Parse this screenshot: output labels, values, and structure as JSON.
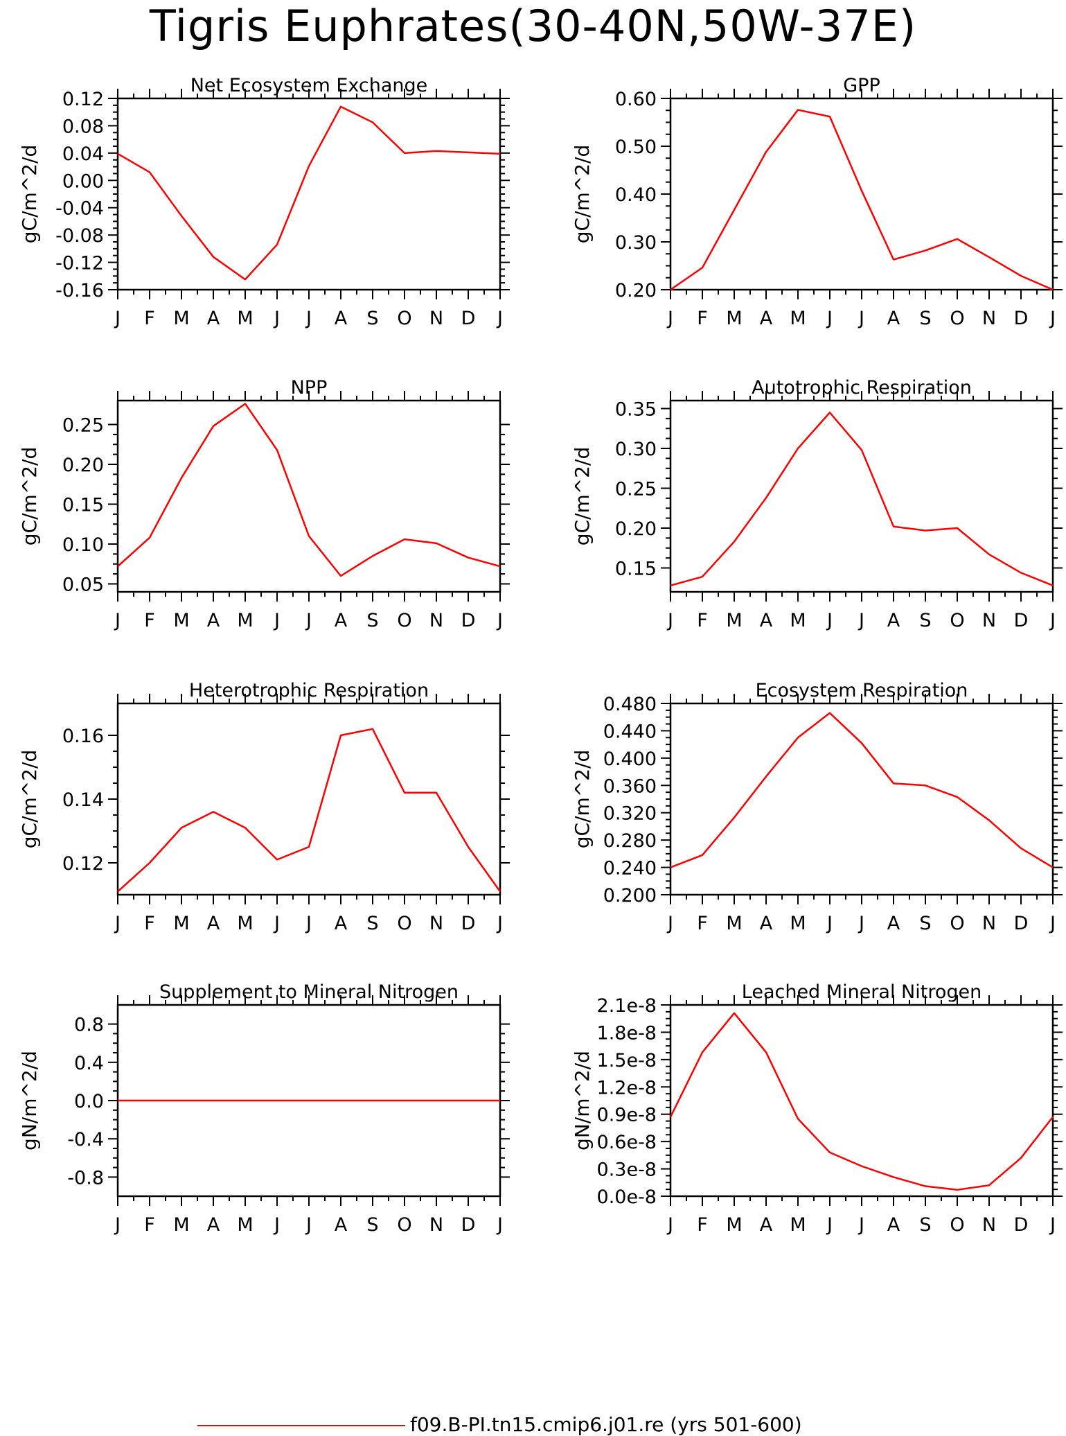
{
  "title": "Tigris Euphrates(30-40N,50W-37E)",
  "legend": {
    "label": "f09.B-PI.tn15.cmip6.j01.re (yrs 501-600)",
    "color": "#ff0000"
  },
  "chart_data": [
    {
      "type": "line",
      "title": "Net Ecosystem Exchange",
      "ylabel": "gC/m^2/d",
      "categories": [
        "J",
        "F",
        "M",
        "A",
        "M",
        "J",
        "J",
        "A",
        "S",
        "O",
        "N",
        "D",
        "J"
      ],
      "ylim": [
        -0.16,
        0.12
      ],
      "yticks": [
        0.12,
        0.08,
        0.04,
        0.0,
        -0.04,
        -0.08,
        -0.12,
        -0.16
      ],
      "ytick_labels": [
        "0.12",
        "0.08",
        "0.04",
        "0.00",
        "-0.04",
        "-0.08",
        "-0.12",
        "-0.16"
      ],
      "series": [
        {
          "values": [
            0.039,
            0.012,
            -0.052,
            -0.112,
            -0.145,
            -0.094,
            0.021,
            0.108,
            0.085,
            0.04,
            0.043,
            0.041,
            0.039
          ]
        }
      ]
    },
    {
      "type": "line",
      "title": "GPP",
      "ylabel": "gC/m^2/d",
      "categories": [
        "J",
        "F",
        "M",
        "A",
        "M",
        "J",
        "J",
        "A",
        "S",
        "O",
        "N",
        "D",
        "J"
      ],
      "ylim": [
        0.2,
        0.6
      ],
      "yticks": [
        0.6,
        0.5,
        0.4,
        0.3,
        0.2
      ],
      "ytick_labels": [
        "0.60",
        "0.50",
        "0.40",
        "0.30",
        "0.20"
      ],
      "series": [
        {
          "values": [
            0.2,
            0.246,
            0.367,
            0.488,
            0.576,
            0.562,
            0.407,
            0.263,
            0.282,
            0.306,
            0.268,
            0.229,
            0.2
          ]
        }
      ]
    },
    {
      "type": "line",
      "title": "NPP",
      "ylabel": "gC/m^2/d",
      "categories": [
        "J",
        "F",
        "M",
        "A",
        "M",
        "J",
        "J",
        "A",
        "S",
        "O",
        "N",
        "D",
        "J"
      ],
      "ylim": [
        0.04,
        0.28
      ],
      "yticks": [
        0.25,
        0.2,
        0.15,
        0.1,
        0.05
      ],
      "ytick_labels": [
        "0.25",
        "0.20",
        "0.15",
        "0.10",
        "0.05"
      ],
      "series": [
        {
          "values": [
            0.072,
            0.108,
            0.183,
            0.248,
            0.276,
            0.218,
            0.11,
            0.06,
            0.085,
            0.106,
            0.101,
            0.083,
            0.072
          ]
        }
      ]
    },
    {
      "type": "line",
      "title": "Autotrophic Respiration",
      "ylabel": "gC/m^2/d",
      "categories": [
        "J",
        "F",
        "M",
        "A",
        "M",
        "J",
        "J",
        "A",
        "S",
        "O",
        "N",
        "D",
        "J"
      ],
      "ylim": [
        0.12,
        0.36
      ],
      "yticks": [
        0.35,
        0.3,
        0.25,
        0.2,
        0.15
      ],
      "ytick_labels": [
        "0.35",
        "0.30",
        "0.25",
        "0.20",
        "0.15"
      ],
      "series": [
        {
          "values": [
            0.128,
            0.139,
            0.183,
            0.238,
            0.3,
            0.345,
            0.298,
            0.202,
            0.197,
            0.2,
            0.167,
            0.144,
            0.128
          ]
        }
      ]
    },
    {
      "type": "line",
      "title": "Heterotrophic Respiration",
      "ylabel": "gC/m^2/d",
      "categories": [
        "J",
        "F",
        "M",
        "A",
        "M",
        "J",
        "J",
        "A",
        "S",
        "O",
        "N",
        "D",
        "J"
      ],
      "ylim": [
        0.11,
        0.17
      ],
      "yticks": [
        0.16,
        0.14,
        0.12
      ],
      "ytick_labels": [
        "0.16",
        "0.14",
        "0.12"
      ],
      "series": [
        {
          "values": [
            0.111,
            0.12,
            0.131,
            0.136,
            0.131,
            0.121,
            0.125,
            0.16,
            0.162,
            0.142,
            0.142,
            0.125,
            0.111
          ]
        }
      ]
    },
    {
      "type": "line",
      "title": "Ecosystem Respiration",
      "ylabel": "gC/m^2/d",
      "categories": [
        "J",
        "F",
        "M",
        "A",
        "M",
        "J",
        "J",
        "A",
        "S",
        "O",
        "N",
        "D",
        "J"
      ],
      "ylim": [
        0.2,
        0.48
      ],
      "yticks": [
        0.48,
        0.44,
        0.4,
        0.36,
        0.32,
        0.28,
        0.24,
        0.2
      ],
      "ytick_labels": [
        "0.480",
        "0.440",
        "0.400",
        "0.360",
        "0.320",
        "0.280",
        "0.240",
        "0.200"
      ],
      "series": [
        {
          "values": [
            0.24,
            0.258,
            0.313,
            0.373,
            0.43,
            0.466,
            0.422,
            0.363,
            0.36,
            0.343,
            0.309,
            0.268,
            0.24
          ]
        }
      ]
    },
    {
      "type": "line",
      "title": "Supplement to Mineral Nitrogen",
      "ylabel": "gN/m^2/d",
      "categories": [
        "J",
        "F",
        "M",
        "A",
        "M",
        "J",
        "J",
        "A",
        "S",
        "O",
        "N",
        "D",
        "J"
      ],
      "ylim": [
        -1.0,
        1.0
      ],
      "yticks": [
        0.8,
        0.4,
        0.0,
        -0.4,
        -0.8
      ],
      "ytick_labels": [
        "0.8",
        "0.4",
        "0.0",
        "-0.4",
        "-0.8"
      ],
      "series": [
        {
          "values": [
            0,
            0,
            0,
            0,
            0,
            0,
            0,
            0,
            0,
            0,
            0,
            0,
            0
          ]
        }
      ]
    },
    {
      "type": "line",
      "title": "Leached Mineral Nitrogen",
      "ylabel": "gN/m^2/d",
      "categories": [
        "J",
        "F",
        "M",
        "A",
        "M",
        "J",
        "J",
        "A",
        "S",
        "O",
        "N",
        "D",
        "J"
      ],
      "ylim": [
        0.0,
        2.1e-08
      ],
      "yticks": [
        2.1e-08,
        1.8e-08,
        1.5e-08,
        1.2e-08,
        9e-09,
        6e-09,
        3e-09,
        0.0
      ],
      "ytick_labels": [
        "2.1e-8",
        "1.8e-8",
        "1.5e-8",
        "1.2e-8",
        "0.9e-8",
        "0.6e-8",
        "0.3e-8",
        "0.0e-8"
      ],
      "series": [
        {
          "values": [
            8.7e-09,
            1.58e-08,
            2.01e-08,
            1.58e-08,
            8.5e-09,
            4.8e-09,
            3.3e-09,
            2.1e-09,
            1.1e-09,
            7e-10,
            1.2e-09,
            4.2e-09,
            8.7e-09
          ]
        }
      ]
    }
  ]
}
